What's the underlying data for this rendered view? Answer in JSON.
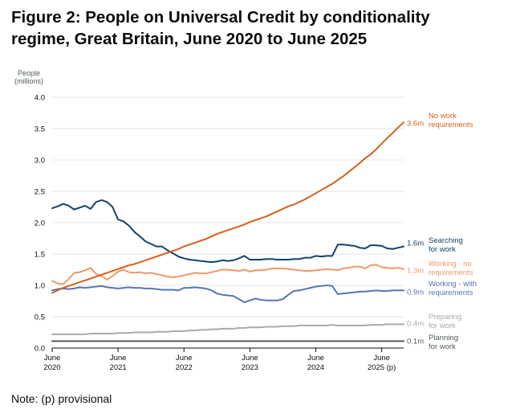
{
  "title": "Figure 2: People on Universal Credit by conditionality regime, Great Britain, June 2020 to June 2025",
  "note": "Note: (p) provisional",
  "chart_data": {
    "type": "line",
    "yaxis_title": [
      "People",
      "(millions)"
    ],
    "ylim": [
      0,
      4.0
    ],
    "yticks": [
      "0.0",
      "0.5",
      "1.0",
      "1.5",
      "2.0",
      "2.5",
      "3.0",
      "3.5",
      "4.0"
    ],
    "xticks": [
      {
        "month": 0,
        "line1": "June",
        "line2": "2020"
      },
      {
        "month": 12,
        "line1": "June",
        "line2": "2021"
      },
      {
        "month": 24,
        "line1": "June",
        "line2": "2022"
      },
      {
        "month": 36,
        "line1": "June",
        "line2": "2023"
      },
      {
        "month": 48,
        "line1": "June",
        "line2": "2024"
      },
      {
        "month": 60,
        "line1": "June",
        "line2": "2025 (p)"
      }
    ],
    "grid": true,
    "series": [
      {
        "name": "No work requirements",
        "label_lines": [
          "No work",
          "requirements"
        ],
        "end_label": "3.6m",
        "color": "#d4611c",
        "values": [
          0.88,
          0.92,
          0.96,
          0.99,
          1.02,
          1.05,
          1.08,
          1.11,
          1.14,
          1.17,
          1.2,
          1.23,
          1.26,
          1.29,
          1.32,
          1.34,
          1.37,
          1.4,
          1.43,
          1.46,
          1.49,
          1.52,
          1.55,
          1.58,
          1.62,
          1.65,
          1.68,
          1.71,
          1.74,
          1.78,
          1.82,
          1.85,
          1.88,
          1.91,
          1.94,
          1.97,
          2.01,
          2.04,
          2.07,
          2.1,
          2.14,
          2.18,
          2.22,
          2.26,
          2.29,
          2.33,
          2.37,
          2.42,
          2.47,
          2.52,
          2.57,
          2.62,
          2.68,
          2.74,
          2.81,
          2.88,
          2.95,
          3.03,
          3.09,
          3.17,
          3.26,
          3.35,
          3.43,
          3.52,
          3.6
        ]
      },
      {
        "name": "Searching for work",
        "label_lines": [
          "Searching",
          "for work"
        ],
        "end_label": "1.6m",
        "color": "#12436d",
        "values": [
          2.23,
          2.26,
          2.3,
          2.27,
          2.21,
          2.24,
          2.27,
          2.22,
          2.33,
          2.36,
          2.33,
          2.25,
          2.05,
          2.02,
          1.95,
          1.85,
          1.78,
          1.7,
          1.66,
          1.62,
          1.62,
          1.56,
          1.51,
          1.46,
          1.43,
          1.41,
          1.4,
          1.39,
          1.38,
          1.37,
          1.38,
          1.4,
          1.39,
          1.4,
          1.43,
          1.47,
          1.41,
          1.41,
          1.41,
          1.42,
          1.42,
          1.41,
          1.41,
          1.41,
          1.42,
          1.42,
          1.44,
          1.44,
          1.47,
          1.46,
          1.47,
          1.47,
          1.65,
          1.65,
          1.64,
          1.63,
          1.6,
          1.59,
          1.64,
          1.64,
          1.63,
          1.59,
          1.58,
          1.6,
          1.62
        ]
      },
      {
        "name": "Working - no requirements",
        "label_lines": [
          "Working - no",
          "requirements"
        ],
        "end_label": "1.3m",
        "color": "#f09868",
        "values": [
          1.07,
          1.03,
          1.02,
          1.1,
          1.2,
          1.21,
          1.24,
          1.28,
          1.18,
          1.15,
          1.09,
          1.15,
          1.22,
          1.25,
          1.21,
          1.2,
          1.21,
          1.19,
          1.2,
          1.18,
          1.16,
          1.14,
          1.13,
          1.14,
          1.16,
          1.18,
          1.2,
          1.19,
          1.19,
          1.21,
          1.23,
          1.25,
          1.25,
          1.24,
          1.23,
          1.25,
          1.22,
          1.24,
          1.24,
          1.25,
          1.27,
          1.27,
          1.27,
          1.26,
          1.25,
          1.24,
          1.23,
          1.23,
          1.24,
          1.25,
          1.26,
          1.25,
          1.24,
          1.27,
          1.28,
          1.3,
          1.3,
          1.27,
          1.32,
          1.33,
          1.29,
          1.28,
          1.27,
          1.28,
          1.26
        ]
      },
      {
        "name": "Working - with requirements",
        "label_lines": [
          "Working - with",
          "requirements"
        ],
        "end_label": "0.9m",
        "color": "#5475b8",
        "values": [
          0.92,
          0.94,
          0.95,
          0.94,
          0.95,
          0.97,
          0.96,
          0.97,
          0.98,
          0.99,
          0.97,
          0.96,
          0.95,
          0.96,
          0.97,
          0.96,
          0.96,
          0.95,
          0.95,
          0.94,
          0.93,
          0.93,
          0.93,
          0.92,
          0.96,
          0.96,
          0.97,
          0.96,
          0.95,
          0.92,
          0.87,
          0.85,
          0.84,
          0.83,
          0.78,
          0.73,
          0.76,
          0.79,
          0.77,
          0.76,
          0.76,
          0.76,
          0.78,
          0.85,
          0.91,
          0.92,
          0.94,
          0.96,
          0.98,
          0.99,
          1.0,
          0.99,
          0.86,
          0.87,
          0.88,
          0.89,
          0.9,
          0.9,
          0.91,
          0.92,
          0.91,
          0.91,
          0.92,
          0.92,
          0.92
        ]
      },
      {
        "name": "Preparing for work",
        "label_lines": [
          "Preparing",
          "for work"
        ],
        "end_label": "0.4m",
        "color": "#a9a9a9",
        "values": [
          0.22,
          0.22,
          0.22,
          0.22,
          0.22,
          0.22,
          0.22,
          0.23,
          0.23,
          0.23,
          0.23,
          0.23,
          0.24,
          0.24,
          0.24,
          0.25,
          0.25,
          0.25,
          0.25,
          0.26,
          0.26,
          0.26,
          0.27,
          0.27,
          0.27,
          0.28,
          0.28,
          0.29,
          0.29,
          0.3,
          0.3,
          0.31,
          0.31,
          0.31,
          0.32,
          0.32,
          0.33,
          0.33,
          0.33,
          0.34,
          0.34,
          0.34,
          0.35,
          0.35,
          0.35,
          0.36,
          0.36,
          0.36,
          0.36,
          0.36,
          0.36,
          0.37,
          0.36,
          0.36,
          0.36,
          0.36,
          0.36,
          0.36,
          0.37,
          0.37,
          0.37,
          0.38,
          0.38,
          0.38,
          0.38
        ]
      },
      {
        "name": "Planning for work",
        "label_lines": [
          "Planning",
          "for work"
        ],
        "end_label": "0.1m",
        "color": "#505a5f",
        "values": [
          0.11,
          0.11,
          0.11,
          0.11,
          0.11,
          0.11,
          0.11,
          0.11,
          0.11,
          0.11,
          0.11,
          0.11,
          0.11,
          0.11,
          0.11,
          0.11,
          0.11,
          0.11,
          0.11,
          0.11,
          0.11,
          0.11,
          0.11,
          0.11,
          0.11,
          0.11,
          0.11,
          0.11,
          0.11,
          0.11,
          0.11,
          0.11,
          0.11,
          0.11,
          0.11,
          0.11,
          0.11,
          0.11,
          0.11,
          0.11,
          0.11,
          0.11,
          0.11,
          0.11,
          0.11,
          0.11,
          0.11,
          0.11,
          0.11,
          0.11,
          0.11,
          0.11,
          0.11,
          0.11,
          0.11,
          0.11,
          0.11,
          0.11,
          0.11,
          0.11,
          0.11,
          0.11,
          0.11,
          0.11,
          0.11
        ]
      }
    ]
  }
}
